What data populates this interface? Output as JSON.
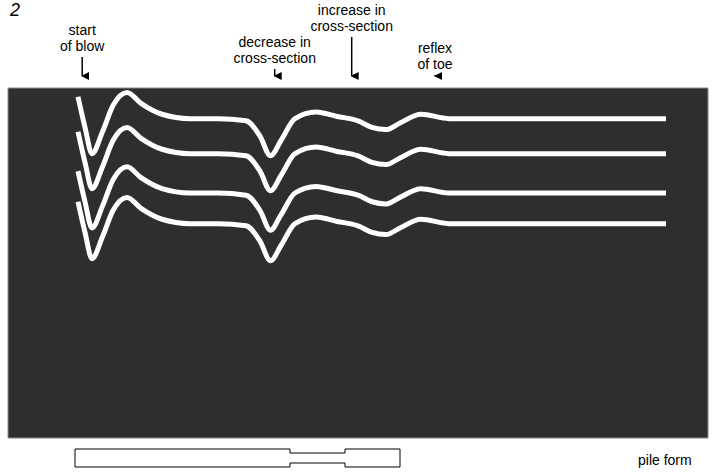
{
  "figure_label": "2",
  "chart_data": {
    "type": "line",
    "grid": true,
    "tick_labels": false,
    "xlim": [
      0,
      10
    ],
    "xticks": [
      0,
      1,
      2,
      3,
      4,
      5,
      6,
      7,
      8,
      9,
      10
    ],
    "ylim": [
      0,
      8
    ],
    "yticks": [
      0,
      1,
      2,
      3,
      4,
      5,
      6,
      7,
      8
    ],
    "x": [
      1.0,
      1.1,
      1.2,
      1.35,
      1.5,
      1.7,
      1.9,
      2.2,
      2.6,
      3.0,
      3.4,
      3.6,
      3.75,
      3.9,
      4.1,
      4.4,
      4.7,
      5.0,
      5.2,
      5.4,
      5.6,
      5.9,
      6.3,
      7.0,
      9.4
    ],
    "series": [
      {
        "color": "#ffffff",
        "values": [
          7.8,
          7.1,
          6.5,
          7.0,
          7.6,
          7.9,
          7.65,
          7.4,
          7.3,
          7.3,
          7.25,
          6.9,
          6.45,
          6.8,
          7.3,
          7.45,
          7.35,
          7.25,
          7.1,
          7.05,
          7.2,
          7.4,
          7.3,
          7.3,
          7.3
        ]
      },
      {
        "color": "#ffffff",
        "values": [
          7.0,
          6.3,
          5.7,
          6.2,
          6.8,
          7.1,
          6.85,
          6.6,
          6.5,
          6.5,
          6.45,
          6.1,
          5.65,
          6.0,
          6.5,
          6.65,
          6.55,
          6.45,
          6.3,
          6.25,
          6.4,
          6.6,
          6.5,
          6.5,
          6.5
        ]
      },
      {
        "color": "#ffffff",
        "values": [
          6.1,
          5.4,
          4.8,
          5.3,
          5.9,
          6.2,
          5.95,
          5.7,
          5.6,
          5.6,
          5.55,
          5.2,
          4.75,
          5.1,
          5.6,
          5.75,
          5.65,
          5.55,
          5.4,
          5.35,
          5.5,
          5.7,
          5.6,
          5.6,
          5.6
        ]
      },
      {
        "color": "#ffffff",
        "values": [
          5.4,
          4.7,
          4.1,
          4.6,
          5.2,
          5.5,
          5.25,
          5.0,
          4.9,
          4.9,
          4.85,
          4.5,
          4.05,
          4.4,
          4.9,
          5.05,
          4.95,
          4.85,
          4.7,
          4.65,
          4.8,
          5.0,
          4.9,
          4.9,
          4.9
        ]
      }
    ],
    "annotations": [
      {
        "text": [
          "start",
          "of blow"
        ],
        "x": 1.06
      },
      {
        "text": [
          "decrease in",
          "cross-section"
        ],
        "x": 3.81
      },
      {
        "text": [
          "increase in",
          "cross-section"
        ],
        "x": 4.91
      },
      {
        "text": [
          "reflex",
          "of toe"
        ],
        "x": 6.1
      }
    ]
  },
  "pile_form_label": "pile form"
}
